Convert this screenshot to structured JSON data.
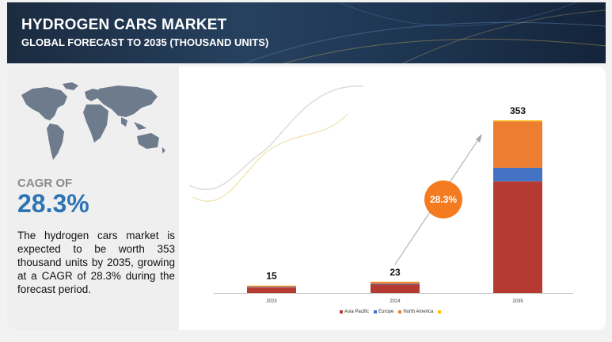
{
  "header": {
    "title": "HYDROGEN CARS MARKET",
    "subtitle": "GLOBAL FORECAST TO 2035 (THOUSAND UNITS)"
  },
  "summary": {
    "cagr_label": "CAGR OF",
    "cagr_value": "28.3%",
    "description": "The hydrogen cars market is expected to be worth 353 thousand units by 2035, growing at a CAGR of 28.3% during the forecast period."
  },
  "colors": {
    "asia_pacific": "#b53a32",
    "europe": "#4472c4",
    "north_america": "#ed7d31",
    "rest": "#ffc000",
    "cagr_bubble": "#f47b20",
    "cagr_value": "#2e74b5"
  },
  "chart_data": {
    "type": "bar",
    "stacked": true,
    "categories": [
      "2023",
      "2024",
      "2035"
    ],
    "totals": [
      15,
      23,
      353
    ],
    "series": [
      {
        "name": "Asia Pacific",
        "color": "#b53a32",
        "values": [
          11,
          17,
          228
        ]
      },
      {
        "name": "Europe",
        "color": "#4472c4",
        "values": [
          1,
          1.5,
          28
        ]
      },
      {
        "name": "North America",
        "color": "#ed7d31",
        "values": [
          2.5,
          4,
          95
        ]
      },
      {
        "name": "",
        "color": "#ffc000",
        "values": [
          0.5,
          0.5,
          2
        ]
      }
    ],
    "ylim": [
      0,
      353
    ],
    "annotation": "28.3%",
    "grid": false,
    "legend_position": "bottom"
  }
}
